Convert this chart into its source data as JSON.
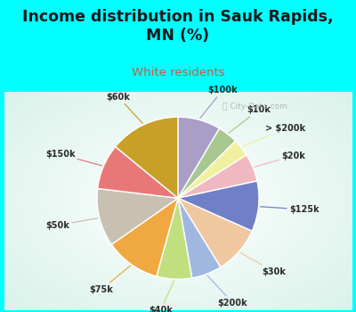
{
  "title": "Income distribution in Sauk Rapids,\nMN (%)",
  "subtitle": "White residents",
  "title_color": "#1a1a1a",
  "subtitle_color": "#c06040",
  "background_top": "#00ffff",
  "background_chart_gradient": [
    "#e8f5ef",
    "#c8e8d8"
  ],
  "watermark": "City-Data.com",
  "slices": [
    {
      "label": "$100k",
      "value": 8.5,
      "color": "#a89ec8"
    },
    {
      "label": "$10k",
      "value": 4.0,
      "color": "#a8c890"
    },
    {
      "label": "> $200k",
      "value": 3.5,
      "color": "#f0f0a0"
    },
    {
      "label": "$20k",
      "value": 5.5,
      "color": "#f0b8c0"
    },
    {
      "label": "$125k",
      "value": 10.0,
      "color": "#7080c8"
    },
    {
      "label": "$30k",
      "value": 9.5,
      "color": "#f0c8a0"
    },
    {
      "label": "$200k",
      "value": 6.0,
      "color": "#a0b8e0"
    },
    {
      "label": "$40k",
      "value": 7.0,
      "color": "#c0e080"
    },
    {
      "label": "$75k",
      "value": 11.0,
      "color": "#f0a840"
    },
    {
      "label": "$50k",
      "value": 11.5,
      "color": "#c8c0b0"
    },
    {
      "label": "$150k",
      "value": 9.0,
      "color": "#e87878"
    },
    {
      "label": "$60k",
      "value": 14.0,
      "color": "#c8a028"
    }
  ],
  "label_line_colors": [
    "#a89ec8",
    "#a8c890",
    "#f0f0a0",
    "#f0b8c0",
    "#7080c8",
    "#f0c8a0",
    "#a0b8e0",
    "#c0e080",
    "#f0a840",
    "#c8c0b0",
    "#e87878",
    "#c8a028"
  ]
}
